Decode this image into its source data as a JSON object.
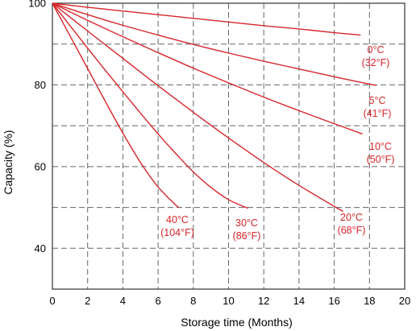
{
  "chart_data": {
    "type": "line",
    "title": "",
    "xlabel": "Storage time (Months)",
    "ylabel": "Capacity (%)",
    "xlim": [
      0,
      20
    ],
    "ylim": [
      30,
      100
    ],
    "x_ticks": [
      "0",
      "2",
      "4",
      "6",
      "8",
      "10",
      "12",
      "14",
      "16",
      "18",
      "20"
    ],
    "y_ticks": [
      "40",
      "60",
      "80",
      "100"
    ],
    "grid": true,
    "series_color": "#d6262b",
    "series": [
      {
        "label_lines": [
          "0°C",
          "(32°F)"
        ],
        "points": [
          [
            0,
            100
          ],
          [
            2,
            99.0
          ],
          [
            4,
            98.1
          ],
          [
            6,
            97.2
          ],
          [
            8,
            96.3
          ],
          [
            10,
            95.4
          ],
          [
            12,
            94.5
          ],
          [
            14,
            93.7
          ],
          [
            16,
            92.8
          ],
          [
            17.5,
            92.2
          ]
        ]
      },
      {
        "label_lines": [
          "5°C",
          "(41°F)"
        ],
        "points": [
          [
            0,
            100
          ],
          [
            2,
            97.2
          ],
          [
            4,
            94.6
          ],
          [
            6,
            92.2
          ],
          [
            8,
            89.9
          ],
          [
            10,
            87.8
          ],
          [
            12,
            85.8
          ],
          [
            14,
            83.9
          ],
          [
            16,
            82.0
          ],
          [
            18,
            80.2
          ],
          [
            18.4,
            79.9
          ]
        ]
      },
      {
        "label_lines": [
          "10°C",
          "(50°F)"
        ],
        "points": [
          [
            0,
            100
          ],
          [
            2,
            95.8
          ],
          [
            4,
            91.8
          ],
          [
            6,
            87.9
          ],
          [
            8,
            84.1
          ],
          [
            10,
            80.5
          ],
          [
            12,
            77.0
          ],
          [
            14,
            73.7
          ],
          [
            16,
            70.5
          ],
          [
            17.6,
            68.0
          ]
        ]
      },
      {
        "label_lines": [
          "20°C",
          "(68°F)"
        ],
        "points": [
          [
            0,
            100
          ],
          [
            2,
            93.2
          ],
          [
            4,
            86.5
          ],
          [
            6,
            79.8
          ],
          [
            8,
            73.3
          ],
          [
            10,
            67.0
          ],
          [
            12,
            61.0
          ],
          [
            14,
            55.4
          ],
          [
            16.5,
            49.0
          ]
        ]
      },
      {
        "label_lines": [
          "30°C",
          "(86°F)"
        ],
        "points": [
          [
            0,
            100
          ],
          [
            1,
            94.5
          ],
          [
            2,
            89.0
          ],
          [
            3,
            83.6
          ],
          [
            4,
            78.3
          ],
          [
            5,
            73.1
          ],
          [
            6,
            68.0
          ],
          [
            7,
            63.2
          ],
          [
            8,
            58.7
          ],
          [
            9,
            54.9
          ],
          [
            10,
            51.9
          ],
          [
            11.1,
            49.8
          ]
        ]
      },
      {
        "label_lines": [
          "40°C",
          "(104°F)"
        ],
        "points": [
          [
            0,
            100
          ],
          [
            1,
            92.0
          ],
          [
            2,
            84.0
          ],
          [
            3,
            76.0
          ],
          [
            4,
            68.2
          ],
          [
            5,
            61.0
          ],
          [
            6,
            55.0
          ],
          [
            7,
            50.6
          ],
          [
            7.2,
            50.0
          ]
        ]
      }
    ]
  }
}
